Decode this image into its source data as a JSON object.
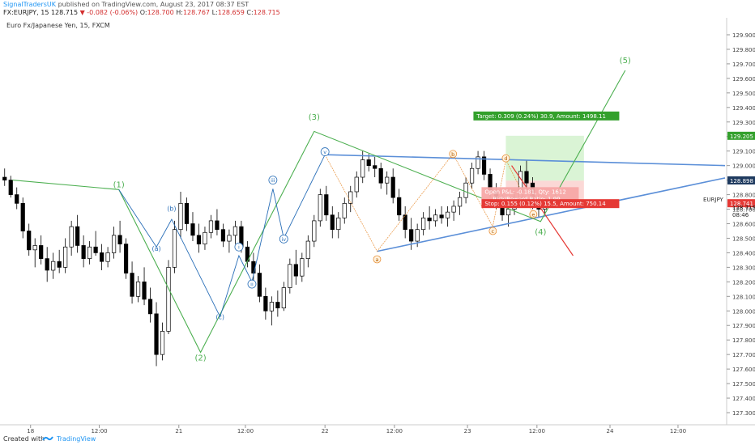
{
  "header": {
    "author": "SignalTradersUK",
    "published": "published on TradingView.com, August 23, 2017 08:37 EST",
    "symbol": "FX:EURJPY, 15",
    "last": "128.715",
    "change": "-0.082 (-0.06%)",
    "o_label": "O:",
    "o_value": "128.700",
    "h_label": "H:",
    "h_value": "128.767",
    "l_label": "L:",
    "l_value": "128.659",
    "c_label": "C:",
    "c_value": "128.715"
  },
  "footer": {
    "created_with": "Created with",
    "brand": "TradingView"
  },
  "colors": {
    "candle_up": "#ffffff",
    "candle_down": "#000000",
    "green_wave": "#4caf50",
    "blue_wave": "#2a6fb8",
    "orange_wave": "#e8913a",
    "trendline": "#5b8fd8",
    "target_box": "#d6f3d0",
    "stop_red": "#e53935",
    "badge_green": "#33a02c",
    "badge_blue": "#1e3a5f",
    "badge_red": "#e53935"
  },
  "chart_data": {
    "type": "candlestick",
    "title": "Euro Fx/Japanese Yen, 15, FXCM",
    "ticker_label": "EURJPY",
    "ylim": [
      127.2,
      130.0
    ],
    "y_ticks": [
      "129.900",
      "129.800",
      "129.700",
      "129.600",
      "129.500",
      "129.400",
      "129.300",
      "129.200",
      "129.100",
      "129.000",
      "128.900",
      "128.800",
      "128.700",
      "128.600",
      "128.500",
      "128.400",
      "128.300",
      "128.200",
      "128.100",
      "128.000",
      "127.900",
      "127.800",
      "127.700",
      "127.600",
      "127.500",
      "127.400",
      "127.300"
    ],
    "x_ticks": [
      "18",
      "12:00",
      "21",
      "12:00",
      "22",
      "12:00",
      "23",
      "12:00",
      "24",
      "12:00"
    ],
    "price_badges": [
      {
        "text": "129.205",
        "value": 129.205,
        "color": "#33a02c"
      },
      {
        "text": "128.898",
        "value": 128.898,
        "color": "#1e3a5f"
      },
      {
        "text": "128.741",
        "value": 128.741,
        "color": "#e53935"
      },
      {
        "text": "128.715",
        "value": 128.715,
        "color": "none"
      },
      {
        "text": "08:46",
        "value": 128.665,
        "color": "none"
      }
    ],
    "wave_labels": {
      "green": [
        {
          "label": "(1)",
          "t": 0.162,
          "p": 128.85
        },
        {
          "label": "(2)",
          "t": 0.275,
          "p": 127.66
        },
        {
          "label": "(3)",
          "t": 0.432,
          "p": 129.315
        },
        {
          "label": "(4)",
          "t": 0.745,
          "p": 128.525
        },
        {
          "label": "(5)",
          "t": 0.862,
          "p": 129.705
        }
      ],
      "blue_circled": [
        {
          "label": "(b)",
          "t": 0.235,
          "p": 128.705
        },
        {
          "label": "(a)",
          "t": 0.214,
          "p": 128.43
        },
        {
          "label": "(c)",
          "t": 0.302,
          "p": 127.96
        },
        {
          "label": "i",
          "t": 0.328,
          "p": 128.44
        },
        {
          "label": "ii",
          "t": 0.346,
          "p": 128.185
        },
        {
          "label": "iii",
          "t": 0.375,
          "p": 128.9
        },
        {
          "label": "iv",
          "t": 0.39,
          "p": 128.495
        },
        {
          "label": "v",
          "t": 0.447,
          "p": 129.095
        }
      ],
      "orange_circled": [
        {
          "label": "a",
          "t": 0.519,
          "p": 128.355
        },
        {
          "label": "b",
          "t": 0.624,
          "p": 129.08
        },
        {
          "label": "c",
          "t": 0.679,
          "p": 128.55
        },
        {
          "label": "d",
          "t": 0.697,
          "p": 129.05
        },
        {
          "label": "e",
          "t": 0.735,
          "p": 128.665
        }
      ]
    },
    "trendlines": [
      {
        "from": {
          "t": 0.447,
          "p": 129.075
        },
        "to": {
          "t": 1.0,
          "p": 129.0
        }
      },
      {
        "from": {
          "t": 0.519,
          "p": 128.41
        },
        "to": {
          "t": 1.0,
          "p": 128.915
        }
      }
    ],
    "green_path": [
      {
        "t": 0.015,
        "p": 128.9
      },
      {
        "t": 0.162,
        "p": 128.835
      },
      {
        "t": 0.275,
        "p": 127.715
      },
      {
        "t": 0.432,
        "p": 129.235
      },
      {
        "t": 0.745,
        "p": 128.615
      },
      {
        "t": 0.862,
        "p": 129.655
      }
    ],
    "blue_path": [
      {
        "t": 0.162,
        "p": 128.835
      },
      {
        "t": 0.214,
        "p": 128.44
      },
      {
        "t": 0.235,
        "p": 128.63
      },
      {
        "t": 0.302,
        "p": 127.96
      },
      {
        "t": 0.328,
        "p": 128.38
      },
      {
        "t": 0.346,
        "p": 128.2
      },
      {
        "t": 0.375,
        "p": 128.84
      },
      {
        "t": 0.39,
        "p": 128.5
      },
      {
        "t": 0.447,
        "p": 129.075
      }
    ],
    "orange_path": [
      {
        "t": 0.447,
        "p": 129.075
      },
      {
        "t": 0.519,
        "p": 128.41
      },
      {
        "t": 0.624,
        "p": 129.08
      },
      {
        "t": 0.679,
        "p": 128.58
      },
      {
        "t": 0.697,
        "p": 129.04
      },
      {
        "t": 0.735,
        "p": 128.665
      }
    ],
    "red_line": {
      "from": {
        "t": 0.705,
        "p": 129.0
      },
      "to": {
        "t": 0.79,
        "p": 128.38
      }
    },
    "position_tool": {
      "target_text": "Target: 0.309 (0.24%) 30.9, Amount: 1498.11",
      "pnl_text": "Open P&L: -0.181, Qty: 1612",
      "rr_text": "Risk/Reward Ratio: 1.99",
      "stop_text": "Stop: 0.155 (0.12%) 15.5, Amount: 750.14",
      "entry": 128.896,
      "target": 129.205,
      "stop": 128.741,
      "t_start": 0.697,
      "t_end": 0.805
    },
    "candles": [
      [
        128.92,
        128.98,
        128.86,
        128.9
      ],
      [
        128.9,
        128.93,
        128.78,
        128.8
      ],
      [
        128.8,
        128.85,
        128.7,
        128.74
      ],
      [
        128.74,
        128.78,
        128.5,
        128.55
      ],
      [
        128.55,
        128.6,
        128.38,
        128.42
      ],
      [
        128.42,
        128.5,
        128.3,
        128.45
      ],
      [
        128.45,
        128.52,
        128.32,
        128.36
      ],
      [
        128.36,
        128.44,
        128.2,
        128.28
      ],
      [
        128.28,
        128.4,
        128.22,
        128.34
      ],
      [
        128.34,
        128.42,
        128.26,
        128.3
      ],
      [
        128.3,
        128.5,
        128.26,
        128.44
      ],
      [
        128.44,
        128.62,
        128.38,
        128.58
      ],
      [
        128.58,
        128.66,
        128.4,
        128.45
      ],
      [
        128.45,
        128.52,
        128.3,
        128.36
      ],
      [
        128.36,
        128.48,
        128.32,
        128.44
      ],
      [
        128.44,
        128.55,
        128.38,
        128.4
      ],
      [
        128.4,
        128.46,
        128.28,
        128.34
      ],
      [
        128.34,
        128.44,
        128.3,
        128.4
      ],
      [
        128.4,
        128.58,
        128.36,
        128.52
      ],
      [
        128.52,
        128.62,
        128.4,
        128.46
      ],
      [
        128.46,
        128.5,
        128.22,
        128.26
      ],
      [
        128.26,
        128.34,
        128.05,
        128.1
      ],
      [
        128.1,
        128.24,
        128.06,
        128.2
      ],
      [
        128.2,
        128.3,
        128.04,
        128.08
      ],
      [
        128.08,
        128.16,
        127.92,
        127.98
      ],
      [
        127.98,
        128.06,
        127.62,
        127.7
      ],
      [
        127.7,
        127.92,
        127.66,
        127.86
      ],
      [
        127.86,
        128.35,
        127.84,
        128.3
      ],
      [
        128.3,
        128.62,
        128.26,
        128.56
      ],
      [
        128.56,
        128.82,
        128.5,
        128.74
      ],
      [
        128.74,
        128.78,
        128.55,
        128.6
      ],
      [
        128.6,
        128.68,
        128.48,
        128.52
      ],
      [
        128.52,
        128.6,
        128.4,
        128.46
      ],
      [
        128.46,
        128.58,
        128.42,
        128.54
      ],
      [
        128.54,
        128.66,
        128.5,
        128.62
      ],
      [
        128.62,
        128.7,
        128.52,
        128.56
      ],
      [
        128.56,
        128.6,
        128.44,
        128.48
      ],
      [
        128.48,
        128.56,
        128.4,
        128.52
      ],
      [
        128.52,
        128.62,
        128.46,
        128.58
      ],
      [
        128.58,
        128.62,
        128.4,
        128.44
      ],
      [
        128.44,
        128.48,
        128.3,
        128.34
      ],
      [
        128.34,
        128.4,
        128.2,
        128.26
      ],
      [
        128.26,
        128.32,
        128.06,
        128.1
      ],
      [
        128.1,
        128.16,
        127.94,
        128.0
      ],
      [
        128.0,
        128.1,
        127.9,
        128.06
      ],
      [
        128.06,
        128.14,
        127.96,
        128.02
      ],
      [
        128.02,
        128.2,
        128.0,
        128.16
      ],
      [
        128.16,
        128.36,
        128.12,
        128.32
      ],
      [
        128.32,
        128.42,
        128.18,
        128.24
      ],
      [
        128.24,
        128.4,
        128.2,
        128.36
      ],
      [
        128.36,
        128.52,
        128.3,
        128.48
      ],
      [
        128.48,
        128.66,
        128.44,
        128.62
      ],
      [
        128.62,
        128.84,
        128.58,
        128.8
      ],
      [
        128.8,
        128.86,
        128.62,
        128.66
      ],
      [
        128.66,
        128.72,
        128.5,
        128.56
      ],
      [
        128.56,
        128.68,
        128.5,
        128.64
      ],
      [
        128.64,
        128.78,
        128.6,
        128.74
      ],
      [
        128.74,
        128.86,
        128.68,
        128.82
      ],
      [
        128.82,
        128.96,
        128.78,
        128.92
      ],
      [
        128.92,
        129.1,
        128.88,
        129.04
      ],
      [
        129.04,
        129.08,
        128.96,
        129.0
      ],
      [
        129.0,
        129.06,
        128.92,
        128.98
      ],
      [
        128.98,
        129.02,
        128.84,
        128.88
      ],
      [
        128.88,
        128.96,
        128.8,
        128.92
      ],
      [
        128.92,
        128.98,
        128.74,
        128.78
      ],
      [
        128.78,
        128.84,
        128.62,
        128.66
      ],
      [
        128.66,
        128.72,
        128.5,
        128.56
      ],
      [
        128.56,
        128.64,
        128.42,
        128.48
      ],
      [
        128.48,
        128.6,
        128.44,
        128.56
      ],
      [
        128.56,
        128.68,
        128.52,
        128.64
      ],
      [
        128.64,
        128.72,
        128.56,
        128.62
      ],
      [
        128.62,
        128.7,
        128.58,
        128.66
      ],
      [
        128.66,
        128.72,
        128.6,
        128.64
      ],
      [
        128.64,
        128.72,
        128.58,
        128.68
      ],
      [
        128.68,
        128.76,
        128.62,
        128.72
      ],
      [
        128.72,
        128.82,
        128.66,
        128.78
      ],
      [
        128.78,
        128.92,
        128.74,
        128.88
      ],
      [
        128.88,
        129.02,
        128.84,
        128.98
      ],
      [
        128.98,
        129.1,
        128.94,
        129.06
      ],
      [
        129.06,
        129.1,
        128.9,
        128.94
      ],
      [
        128.94,
        128.98,
        128.78,
        128.82
      ],
      [
        128.82,
        128.88,
        128.7,
        128.74
      ],
      [
        128.74,
        128.8,
        128.62,
        128.66
      ],
      [
        128.66,
        128.74,
        128.58,
        128.7
      ],
      [
        128.7,
        128.82,
        128.66,
        128.78
      ],
      [
        128.78,
        129.0,
        128.74,
        128.96
      ],
      [
        128.96,
        129.04,
        128.84,
        128.88
      ],
      [
        128.88,
        128.92,
        128.7,
        128.74
      ],
      [
        128.74,
        128.8,
        128.64,
        128.7
      ],
      [
        128.7,
        128.76,
        128.66,
        128.72
      ]
    ]
  }
}
